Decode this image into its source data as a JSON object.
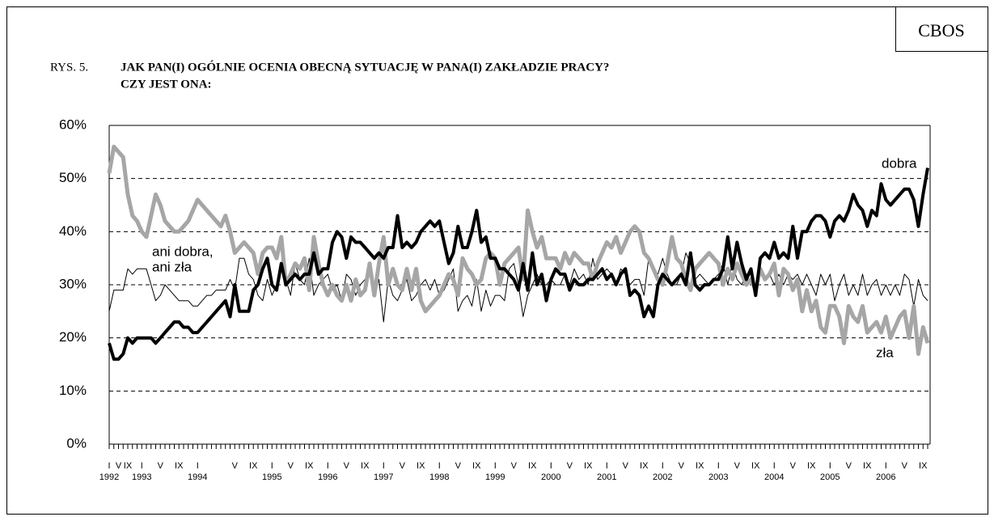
{
  "chart_data": {
    "type": "line",
    "source": "CBOS",
    "figure_label": "RYS. 5.",
    "title_lines": [
      "JAK PAN(I) OGÓLNIE OCENIA OBECNĄ SYTUACJĘ W PANA(I) ZAKŁADZIE PRACY?",
      "CZY JEST ONA:"
    ],
    "categories": [
      "I",
      null,
      "V",
      null,
      "IX",
      null,
      null,
      "I",
      null,
      null,
      null,
      "V",
      null,
      null,
      null,
      "IX",
      null,
      null,
      null,
      "I",
      null,
      null,
      null,
      null,
      null,
      null,
      null,
      "V",
      null,
      null,
      null,
      "IX",
      null,
      null,
      null,
      "I",
      null,
      null,
      null,
      "V",
      null,
      null,
      null,
      "IX",
      null,
      null,
      null,
      "I",
      null,
      null,
      null,
      "V",
      null,
      null,
      null,
      "IX",
      null,
      null,
      null,
      "I",
      null,
      null,
      null,
      "V",
      null,
      null,
      null,
      "IX",
      null,
      null,
      null,
      "I",
      null,
      null,
      null,
      "V",
      null,
      null,
      null,
      "IX",
      null,
      null,
      null,
      "I",
      null,
      null,
      null,
      "V",
      null,
      null,
      null,
      "IX",
      null,
      null,
      null,
      "I",
      null,
      null,
      null,
      "V",
      null,
      null,
      null,
      "IX",
      null,
      null,
      null,
      "I",
      null,
      null,
      null,
      "V",
      null,
      null,
      null,
      "IX",
      null,
      null,
      null,
      "I",
      null,
      null,
      null,
      "V",
      null,
      null,
      null,
      "IX",
      null,
      null,
      null,
      "I",
      null,
      null,
      null,
      "V",
      null,
      null,
      null,
      "IX",
      null,
      null,
      null,
      "I",
      null,
      null,
      null,
      "V",
      null,
      null,
      null,
      "IX",
      null,
      null,
      null,
      "I",
      null,
      null,
      null,
      "V",
      null,
      null,
      null,
      "IX",
      null,
      null,
      null,
      "I",
      null,
      null,
      null,
      "V",
      null,
      null,
      null,
      "IX",
      null
    ],
    "category_years": [
      "1992",
      null,
      null,
      null,
      null,
      null,
      null,
      "1993",
      null,
      null,
      null,
      null,
      null,
      null,
      null,
      null,
      null,
      null,
      null,
      "1994",
      null,
      null,
      null,
      null,
      null,
      null,
      null,
      null,
      null,
      null,
      null,
      null,
      null,
      null,
      null,
      "1995",
      null,
      null,
      null,
      null,
      null,
      null,
      null,
      null,
      null,
      null,
      null,
      "1996",
      null,
      null,
      null,
      null,
      null,
      null,
      null,
      null,
      null,
      null,
      null,
      "1997",
      null,
      null,
      null,
      null,
      null,
      null,
      null,
      null,
      null,
      null,
      null,
      "1998",
      null,
      null,
      null,
      null,
      null,
      null,
      null,
      null,
      null,
      null,
      null,
      "1999",
      null,
      null,
      null,
      null,
      null,
      null,
      null,
      null,
      null,
      null,
      null,
      "2000",
      null,
      null,
      null,
      null,
      null,
      null,
      null,
      null,
      null,
      null,
      null,
      "2001",
      null,
      null,
      null,
      null,
      null,
      null,
      null,
      null,
      null,
      null,
      null,
      "2002",
      null,
      null,
      null,
      null,
      null,
      null,
      null,
      null,
      null,
      null,
      null,
      "2003",
      null,
      null,
      null,
      null,
      null,
      null,
      null,
      null,
      null,
      null,
      null,
      "2004",
      null,
      null,
      null,
      null,
      null,
      null,
      null,
      null,
      null,
      null,
      null,
      "2005",
      null,
      null,
      null,
      null,
      null,
      null,
      null,
      null,
      null,
      null,
      null,
      "2006",
      null,
      null,
      null,
      null,
      null,
      null,
      null,
      null,
      null
    ],
    "series": [
      {
        "name": [
          "dobra"
        ],
        "color": "#000000",
        "width": 4,
        "values": [
          19,
          16,
          16,
          17,
          20,
          19,
          20,
          20,
          20,
          20,
          19,
          20,
          21,
          22,
          23,
          23,
          22,
          22,
          21,
          21,
          22,
          23,
          24,
          25,
          26,
          27,
          24,
          30,
          25,
          25,
          25,
          29,
          30,
          33,
          35,
          30,
          29,
          34,
          30,
          31,
          32,
          31,
          32,
          32,
          36,
          32,
          33,
          33,
          38,
          40,
          39,
          35,
          39,
          38,
          38,
          37,
          36,
          35,
          36,
          35,
          37,
          37,
          43,
          37,
          38,
          37,
          38,
          40,
          41,
          42,
          41,
          42,
          38,
          34,
          36,
          41,
          37,
          37,
          40,
          44,
          38,
          39,
          35,
          35,
          33,
          33,
          32,
          31,
          29,
          34,
          29,
          36,
          30,
          32,
          27,
          31,
          33,
          32,
          32,
          29,
          31,
          30,
          30,
          31,
          31,
          32,
          33,
          31,
          32,
          30,
          32,
          33,
          28,
          29,
          28,
          24,
          26,
          24,
          30,
          32,
          31,
          30,
          31,
          32,
          30,
          36,
          30,
          29,
          30,
          30,
          31,
          31,
          33,
          39,
          33,
          38,
          34,
          31,
          33,
          28,
          35,
          36,
          35,
          38,
          35,
          36,
          35,
          41,
          35,
          40,
          40,
          42,
          43,
          43,
          42,
          39,
          42,
          43,
          42,
          44,
          47,
          45,
          44,
          41,
          44,
          43,
          49,
          46,
          45,
          46,
          47,
          48,
          48,
          46,
          41,
          47,
          52
        ]
      },
      {
        "name": [
          "ani dobra,",
          "ani zła"
        ],
        "color": "#000000",
        "width": 1,
        "values": [
          25,
          29,
          29,
          29,
          33,
          32,
          33,
          33,
          33,
          30,
          27,
          28,
          30,
          29,
          28,
          27,
          27,
          27,
          26,
          26,
          27,
          28,
          28,
          29,
          29,
          29,
          31,
          29,
          35,
          35,
          32,
          31,
          28,
          27,
          31,
          28,
          30,
          33,
          31,
          28,
          34,
          31,
          30,
          35,
          28,
          30,
          31,
          32,
          29,
          30,
          27,
          32,
          31,
          28,
          30,
          31,
          32,
          28,
          31,
          23,
          31,
          28,
          27,
          29,
          31,
          27,
          28,
          30,
          31,
          29,
          31,
          28,
          29,
          31,
          33,
          25,
          27,
          28,
          26,
          31,
          25,
          29,
          26,
          28,
          28,
          27,
          33,
          34,
          30,
          24,
          28,
          30,
          32,
          30,
          30,
          31,
          30,
          30,
          32,
          30,
          33,
          31,
          32,
          30,
          35,
          31,
          32,
          33,
          32,
          30,
          33,
          32,
          30,
          31,
          31,
          28,
          35,
          33,
          32,
          35,
          32,
          30,
          30,
          32,
          36,
          34,
          31,
          32,
          31,
          30,
          31,
          32,
          34,
          30,
          34,
          31,
          30,
          32,
          32,
          29,
          32,
          31,
          32,
          30,
          32,
          30,
          32,
          31,
          32,
          30,
          32,
          30,
          28,
          32,
          30,
          32,
          27,
          30,
          32,
          28,
          30,
          28,
          32,
          28,
          30,
          31,
          28,
          30,
          28,
          30,
          28,
          32,
          31,
          26,
          31,
          28,
          27
        ]
      },
      {
        "name": [
          "zła"
        ],
        "color": "#a6a6a6",
        "width": 5,
        "values": [
          51,
          56,
          55,
          54,
          47,
          43,
          42,
          40,
          39,
          43,
          47,
          45,
          42,
          41,
          40,
          40,
          41,
          42,
          44,
          46,
          45,
          44,
          43,
          42,
          41,
          43,
          40,
          36,
          37,
          38,
          37,
          36,
          32,
          36,
          37,
          37,
          35,
          39,
          30,
          32,
          34,
          33,
          35,
          29,
          39,
          34,
          30,
          28,
          30,
          28,
          27,
          30,
          27,
          31,
          28,
          29,
          34,
          28,
          34,
          39,
          30,
          33,
          30,
          29,
          33,
          29,
          33,
          27,
          25,
          26,
          27,
          28,
          30,
          32,
          31,
          28,
          35,
          33,
          32,
          30,
          31,
          35,
          36,
          35,
          30,
          34,
          35,
          36,
          37,
          31,
          44,
          40,
          37,
          39,
          35,
          35,
          35,
          33,
          36,
          34,
          36,
          35,
          34,
          34,
          31,
          34,
          36,
          38,
          37,
          39,
          36,
          38,
          40,
          41,
          40,
          36,
          35,
          33,
          31,
          30,
          34,
          39,
          35,
          34,
          31,
          29,
          33,
          34,
          35,
          36,
          35,
          34,
          30,
          33,
          31,
          34,
          32,
          30,
          31,
          29,
          33,
          31,
          32,
          34,
          28,
          33,
          32,
          29,
          31,
          25,
          29,
          25,
          27,
          22,
          21,
          26,
          26,
          24,
          19,
          26,
          24,
          23,
          26,
          21,
          22,
          23,
          21,
          24,
          20,
          22,
          24,
          25,
          20,
          26,
          17,
          22,
          19
        ]
      }
    ],
    "ylim": [
      0,
      60
    ],
    "yticks": [
      {
        "value": 0,
        "label": "0%"
      },
      {
        "value": 10,
        "label": "10%"
      },
      {
        "value": 20,
        "label": "20%"
      },
      {
        "value": 30,
        "label": "30%"
      },
      {
        "value": 40,
        "label": "40%"
      },
      {
        "value": 50,
        "label": "50%"
      },
      {
        "value": 60,
        "label": "60%"
      }
    ],
    "grid": true
  }
}
